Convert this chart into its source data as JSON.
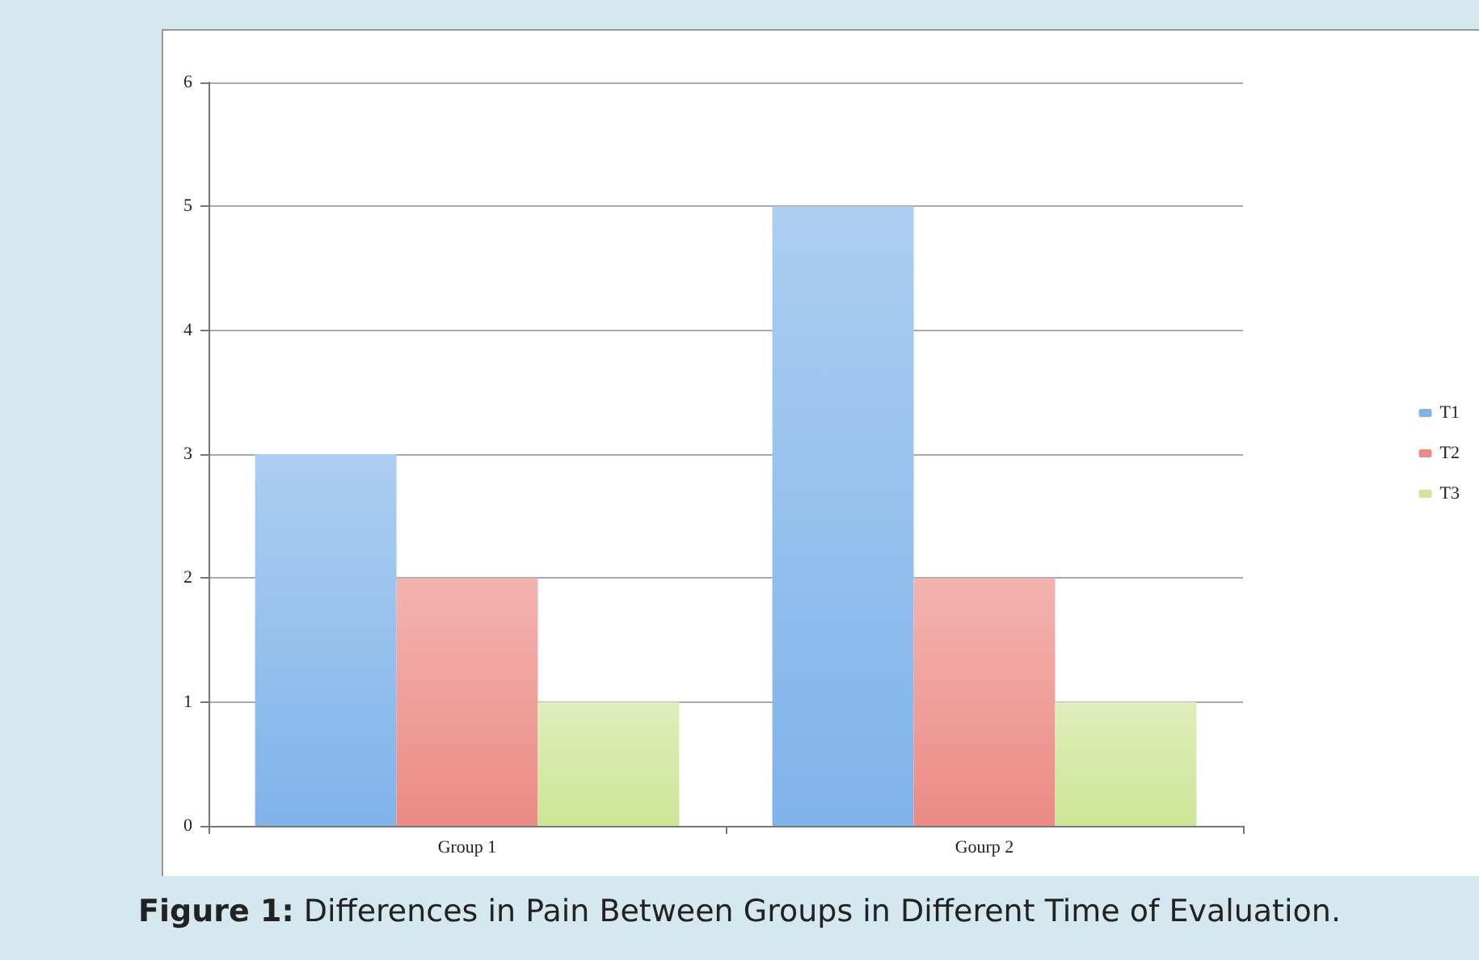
{
  "chart_data": {
    "type": "bar",
    "title": "Figure 1: Differences in Pain Between Groups in Different Time of Evaluation.",
    "categories": [
      "Group 1",
      "Gourp 2"
    ],
    "series": [
      {
        "name": "T1",
        "color": "#7fb3ea",
        "values": [
          3,
          5
        ]
      },
      {
        "name": "T2",
        "color": "#ec8a85",
        "values": [
          2,
          2
        ]
      },
      {
        "name": "T3",
        "color": "#cde596",
        "values": [
          1,
          1
        ]
      }
    ],
    "ylim": [
      0,
      6
    ],
    "yticks": [
      0,
      1,
      2,
      3,
      4,
      5,
      6
    ],
    "grid": "y",
    "legend": "right"
  }
}
